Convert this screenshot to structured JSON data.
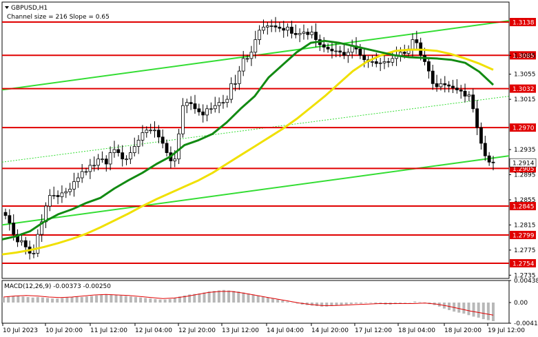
{
  "header": {
    "symbol": "GBPUSD,H1",
    "channel_text": "Channel size = 216 Slope = 0.65"
  },
  "macd": {
    "label": "MACD(12,26,9) -0.00373 -0.00250"
  },
  "chart_data": [
    {
      "type": "candlestick",
      "symbol": "GBPUSD",
      "timeframe": "H1",
      "ylim": [
        1.2735,
        1.3155
      ],
      "y_ticks": [
        "1.3085",
        "1.3055",
        "1.3015",
        "1.2935",
        "1.2895",
        "1.2855",
        "1.2815",
        "1.2775",
        "1.2735"
      ],
      "x_tick_labels": [
        "10 Jul 2023",
        "10 Jul 20:00",
        "11 Jul 12:00",
        "12 Jul 04:00",
        "12 Jul 20:00",
        "13 Jul 12:00",
        "14 Jul 04:00",
        "14 Jul 20:00",
        "17 Jul 12:00",
        "18 Jul 04:00",
        "18 Jul 20:00",
        "19 Jul 12:00"
      ],
      "levels": [
        {
          "label": "1.3138",
          "value": 1.3138
        },
        {
          "label": "1.3085",
          "value": 1.3085
        },
        {
          "label": "1.3032",
          "value": 1.3032
        },
        {
          "label": "1.2970",
          "value": 1.297
        },
        {
          "label": "1.2905",
          "value": 1.2905
        },
        {
          "label": "1.2845",
          "value": 1.2845
        },
        {
          "label": "1.2799",
          "value": 1.2799
        },
        {
          "label": "1.2754",
          "value": 1.2754
        }
      ],
      "current_price": "1.2914",
      "close_series": [
        1.283,
        1.2818,
        1.28,
        1.2788,
        1.279,
        1.278,
        1.277,
        1.277,
        1.28,
        1.282,
        1.2845,
        1.2862,
        1.2862,
        1.286,
        1.2866,
        1.2868,
        1.2872,
        1.2884,
        1.289,
        1.29,
        1.29,
        1.291,
        1.291,
        1.292,
        1.292,
        1.2912,
        1.293,
        1.2935,
        1.293,
        1.292,
        1.292,
        1.293,
        1.294,
        1.295,
        1.2962,
        1.2966,
        1.2966,
        1.2966,
        1.2955,
        1.2945,
        1.293,
        1.2917,
        1.292,
        1.296,
        1.3005,
        1.301,
        1.3008,
        1.3,
        1.2995,
        1.299,
        1.3,
        1.3,
        1.3005,
        1.301,
        1.301,
        1.3015,
        1.304,
        1.304,
        1.306,
        1.308,
        1.308,
        1.309,
        1.311,
        1.3125,
        1.313,
        1.3132,
        1.3132,
        1.313,
        1.3128,
        1.3125,
        1.313,
        1.312,
        1.3118,
        1.312,
        1.3122,
        1.3118,
        1.3122,
        1.311,
        1.3102,
        1.3098,
        1.3095,
        1.3092,
        1.3092,
        1.309,
        1.3085,
        1.309,
        1.31,
        1.3095,
        1.3085,
        1.3078,
        1.3075,
        1.3075,
        1.3072,
        1.3073,
        1.3075,
        1.3074,
        1.308,
        1.3085,
        1.309,
        1.3088,
        1.3095,
        1.311,
        1.3105,
        1.3085,
        1.3075,
        1.306,
        1.304,
        1.3035,
        1.304,
        1.3038,
        1.3036,
        1.3033,
        1.303,
        1.3028,
        1.302,
        1.3022,
        1.3,
        1.297,
        1.2945,
        1.2925,
        1.2915,
        1.2914
      ],
      "ma_yellow": [
        1.2768,
        1.2771,
        1.2775,
        1.278,
        1.2786,
        1.2793,
        1.2801,
        1.2811,
        1.2822,
        1.2833,
        1.2845,
        1.2856,
        1.2866,
        1.2876,
        1.2886,
        1.2898,
        1.2912,
        1.2926,
        1.294,
        1.2954,
        1.2968,
        1.2984,
        1.3002,
        1.302,
        1.304,
        1.306,
        1.3075,
        1.3085,
        1.3092,
        1.3094,
        1.3094,
        1.3092,
        1.3087,
        1.308,
        1.3072,
        1.3062
      ],
      "ma_green": [
        1.2792,
        1.2797,
        1.2805,
        1.282,
        1.2832,
        1.284,
        1.285,
        1.2858,
        1.2873,
        1.2886,
        1.2898,
        1.2912,
        1.2924,
        1.2942,
        1.295,
        1.296,
        1.2978,
        1.3,
        1.302,
        1.305,
        1.307,
        1.309,
        1.3105,
        1.3108,
        1.3105,
        1.31,
        1.3095,
        1.309,
        1.3085,
        1.3082,
        1.3081,
        1.308,
        1.3078,
        1.3073,
        1.3059,
        1.3038
      ],
      "channel": {
        "upper": [
          [
            1.303,
            1.314
          ]
        ],
        "middle": [
          [
            1.2915,
            1.302
          ]
        ],
        "lower": [
          [
            1.2815,
            1.2925
          ]
        ]
      }
    },
    {
      "type": "macd",
      "params": [
        12,
        26,
        9
      ],
      "main": -0.00373,
      "signal": -0.0025,
      "y_ticks": [
        "0.00438",
        "0.00",
        "-0.00411"
      ],
      "ylim": [
        -0.00411,
        0.00438
      ],
      "hist": [
        0.001,
        0.0012,
        0.0013,
        0.0013,
        0.0012,
        0.0011,
        0.001,
        0.0011,
        0.001,
        0.0009,
        0.0008,
        0.0008,
        0.0009,
        0.001,
        0.0011,
        0.0012,
        0.0011,
        0.0012,
        0.0013,
        0.0014,
        0.0015,
        0.0016,
        0.0016,
        0.0015,
        0.0014,
        0.0013,
        0.0012,
        0.0011,
        0.001,
        0.0009,
        0.0008,
        0.0007,
        0.0006,
        0.0006,
        0.0007,
        0.0009,
        0.0012,
        0.0014,
        0.0016,
        0.0017,
        0.0018,
        0.002,
        0.0022,
        0.0023,
        0.0024,
        0.0025,
        0.0024,
        0.0023,
        0.0022,
        0.002,
        0.0018,
        0.0016,
        0.0014,
        0.0012,
        0.001,
        0.0008,
        0.0006,
        0.0004,
        0.0002,
        0.0,
        -0.0002,
        -0.0004,
        -0.0005,
        -0.0006,
        -0.0007,
        -0.0008,
        -0.0008,
        -0.0007,
        -0.0006,
        -0.0005,
        -0.0004,
        -0.0003,
        -0.0002,
        -0.0002,
        -0.0001,
        -0.0001,
        -0.0002,
        -0.0003,
        -0.0004,
        -0.0004,
        -0.0003,
        -0.0002,
        -0.0001,
        0.0,
        0.0002,
        0.0001,
        -0.0001,
        -0.0003,
        -0.0005,
        -0.0008,
        -0.0012,
        -0.0015,
        -0.0018,
        -0.002,
        -0.0022,
        -0.0025,
        -0.0028,
        -0.003,
        -0.0033,
        -0.0035,
        -0.0037
      ],
      "signal_line": [
        0.0011,
        0.0013,
        0.0014,
        0.0013,
        0.0011,
        0.001,
        0.0011,
        0.0013,
        0.0015,
        0.0016,
        0.0015,
        0.0014,
        0.0012,
        0.001,
        0.0008,
        0.0009,
        0.0012,
        0.0016,
        0.002,
        0.0022,
        0.0022,
        0.0019,
        0.0015,
        0.0011,
        0.0007,
        0.0003,
        -0.0001,
        -0.0004,
        -0.0006,
        -0.0006,
        -0.0005,
        -0.0004,
        -0.0003,
        -0.0002,
        -0.0002,
        -0.0002,
        -0.0002,
        -0.0001,
        -0.0003,
        -0.0007,
        -0.0012,
        -0.0017,
        -0.0021,
        -0.0025
      ]
    }
  ]
}
